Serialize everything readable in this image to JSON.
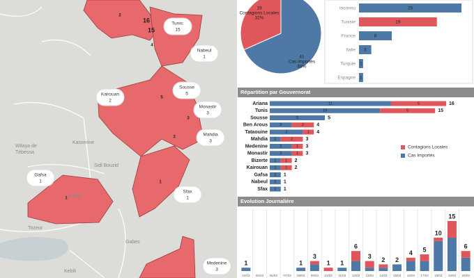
{
  "chart_data": [
    {
      "type": "pie",
      "categories": [
        "Contagions Locales",
        "Cas importés"
      ],
      "values": [
        19,
        41
      ],
      "percent_labels": [
        "32%",
        "68%"
      ],
      "colors": [
        "#e0575b",
        "#4e79a7"
      ]
    },
    {
      "type": "bar",
      "categories": [
        "Inconnu",
        "Tunisie",
        "France",
        "Italie",
        "Turquie",
        "Espagne"
      ],
      "values": [
        25,
        19,
        8,
        3,
        1,
        1
      ],
      "colors": [
        "#4e79a7",
        "#e0575b",
        "#4e79a7",
        "#4e79a7",
        "#4e79a7",
        "#4e79a7"
      ],
      "xlim": [
        0,
        25
      ]
    },
    {
      "type": "stacked-bar",
      "title": "Répartition par Gouvernorat",
      "categories": [
        "Ariana",
        "Tunis",
        "Sousse",
        "Ben Arous",
        "Tataouine",
        "Mahdia",
        "Medenine",
        "Monastir",
        "Bizerte",
        "Kairouan",
        "Gafsa",
        "Nabeul",
        "Sfax"
      ],
      "series": [
        {
          "name": "Cas Importés",
          "color": "#4e79a7",
          "values": [
            11,
            10,
            5,
            2,
            3,
            1,
            2,
            2,
            1,
            1,
            1,
            1,
            1
          ]
        },
        {
          "name": "Contagions Locales",
          "color": "#e0575b",
          "values": [
            5,
            5,
            0,
            2,
            1,
            2,
            1,
            1,
            1,
            1,
            0,
            0,
            0
          ]
        }
      ],
      "totals": [
        16,
        15,
        5,
        4,
        4,
        3,
        3,
        3,
        2,
        2,
        1,
        1,
        1
      ],
      "xlim": [
        0,
        16
      ],
      "legend": "right"
    },
    {
      "type": "stacked-column",
      "title": "Evolution Journalière",
      "categories": [
        "04/03",
        "05/03",
        "06/03",
        "07/03",
        "08/03",
        "09/03",
        "10/03",
        "11/03",
        "12/03",
        "13/03",
        "14/03",
        "15/03",
        "16/03",
        "17/03",
        "18/03",
        "19/03",
        "20/03"
      ],
      "series": [
        {
          "name": "Cas Importés",
          "color": "#4e79a7",
          "values": [
            1,
            0,
            0,
            0,
            1,
            2,
            0,
            1,
            3,
            1,
            1,
            2,
            3,
            3,
            9,
            10,
            4
          ]
        },
        {
          "name": "Contagions Locales",
          "color": "#e0575b",
          "values": [
            0,
            0,
            0,
            0,
            0,
            1,
            1,
            0,
            3,
            2,
            1,
            0,
            1,
            2,
            1,
            5,
            2
          ]
        }
      ],
      "totals": [
        1,
        null,
        null,
        null,
        1,
        3,
        1,
        1,
        6,
        3,
        2,
        2,
        4,
        5,
        10,
        15,
        6
      ],
      "ylim": [
        0,
        15
      ]
    }
  ],
  "map": {
    "callouts": [
      {
        "name": "Tunis:",
        "value": 15
      },
      {
        "name": "Nabeul",
        "value": 1
      },
      {
        "name": "Kairouan",
        "value": 2
      },
      {
        "name": "Sousse",
        "value": 5
      },
      {
        "name": "Monastir",
        "value": 3
      },
      {
        "name": "Mahdia",
        "value": 3
      },
      {
        "name": "Sfax",
        "value": 1
      },
      {
        "name": "Gafsa",
        "value": 1
      },
      {
        "name": "Medenine",
        "value": 3
      }
    ],
    "counts": [
      16,
      15,
      2,
      4,
      5,
      3,
      3,
      1,
      1
    ],
    "places": [
      "Wilaya de",
      "Tébessa",
      "Kasserine",
      "Sidi Bouzid",
      "Tozeur",
      "Gabes",
      "Kebili",
      "Gafsa"
    ]
  }
}
